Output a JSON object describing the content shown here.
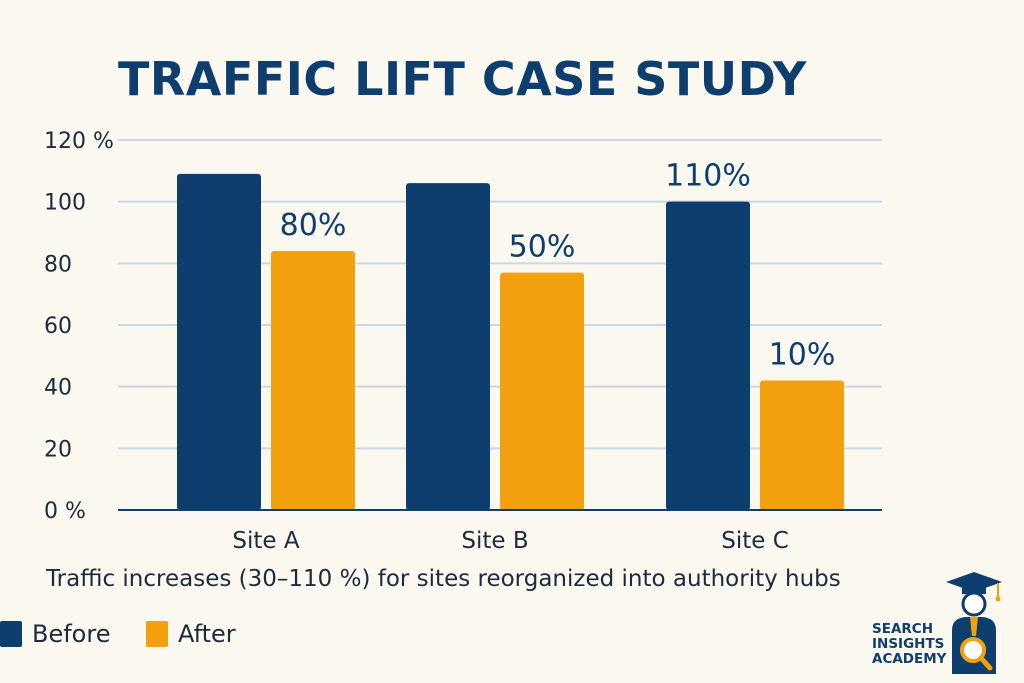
{
  "chart_data": {
    "type": "bar",
    "title": "TRAFFIC LIFT CASE STUDY",
    "subtitle": "Traffic increases (30–110 %) for sites reorganized into authority hubs",
    "categories": [
      "Site A",
      "Site B",
      "Site C"
    ],
    "series": [
      {
        "name": "Before",
        "values": [
          109,
          106,
          100
        ],
        "color": "#0d3e6e"
      },
      {
        "name": "After",
        "values": [
          84,
          77,
          42
        ],
        "color": "#f3a00f"
      }
    ],
    "bar_labels": [
      {
        "category": "Site A",
        "series": "After",
        "text": "80%"
      },
      {
        "category": "Site B",
        "series": "After",
        "text": "50%"
      },
      {
        "category": "Site C",
        "series": "Before",
        "text": "110%"
      },
      {
        "category": "Site C",
        "series": "After",
        "text": "10%"
      }
    ],
    "y_ticks": [
      "0 %",
      "20",
      "40",
      "60",
      "80",
      "100",
      "120 %"
    ],
    "y_tick_values": [
      0,
      20,
      40,
      60,
      80,
      100,
      120
    ],
    "ylim": [
      0,
      120
    ],
    "grid": true,
    "legend_placement": "bottom-left"
  },
  "branding": {
    "logo_lines": [
      "SEARCH",
      "INSIGHTS",
      "ACADEMY"
    ],
    "logo_icon": "graduate-magnifier-icon"
  }
}
